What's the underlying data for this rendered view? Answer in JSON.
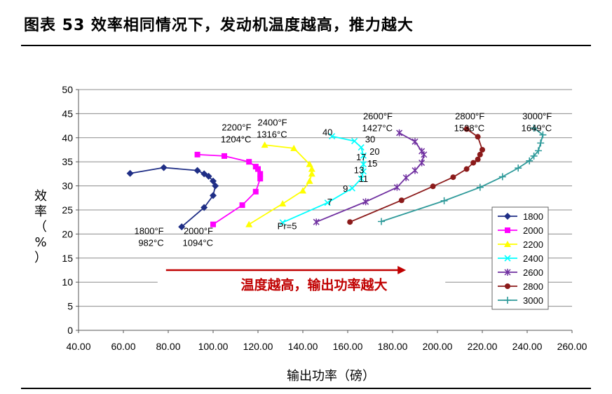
{
  "figure": {
    "title": "图表 53 效率相同情况下，发动机温度越高，推力越大"
  },
  "chart_data": {
    "type": "line",
    "xlabel": "输出功率（磅）",
    "ylabel_chars": [
      "效",
      "率",
      "（",
      "%",
      "）"
    ],
    "xlim": [
      40,
      260
    ],
    "ylim": [
      0,
      50
    ],
    "xticks": [
      "40.00",
      "60.00",
      "80.00",
      "100.00",
      "120.00",
      "140.00",
      "160.00",
      "180.00",
      "200.00",
      "220.00",
      "240.00",
      "260.00"
    ],
    "yticks": [
      "0",
      "5",
      "10",
      "15",
      "20",
      "25",
      "30",
      "35",
      "40",
      "45",
      "50"
    ],
    "grid": true,
    "legend_position": "right",
    "series": [
      {
        "name": "1800",
        "color": "#1f2e86",
        "marker": "diamond",
        "x": [
          86,
          96,
          100,
          101,
          100,
          98,
          96,
          93,
          78,
          63
        ],
        "y": [
          21.5,
          25.5,
          28,
          30,
          31,
          32,
          32.5,
          33.2,
          33.8,
          32.6
        ]
      },
      {
        "name": "2000",
        "color": "#ff00ff",
        "marker": "square",
        "x": [
          100,
          113,
          119,
          121,
          121,
          120,
          119,
          116,
          105,
          93
        ],
        "y": [
          22,
          26,
          28.8,
          31.5,
          32.5,
          33.5,
          34,
          35,
          36.2,
          36.5
        ]
      },
      {
        "name": "2200",
        "color": "#ffff00",
        "marker": "triangle",
        "x": [
          116,
          131,
          140,
          143,
          144,
          144,
          143,
          136,
          123
        ],
        "y": [
          22,
          26.3,
          29,
          31,
          32.5,
          33.5,
          34.5,
          37.8,
          38.5
        ]
      },
      {
        "name": "2400",
        "color": "#00ffff",
        "marker": "x",
        "x": [
          131,
          151,
          162,
          166,
          167,
          167,
          167,
          166,
          163,
          153
        ],
        "y": [
          22.4,
          26.5,
          29.5,
          31.5,
          33,
          34.5,
          36.3,
          38,
          39.3,
          40.3
        ]
      },
      {
        "name": "2600",
        "color": "#7030a0",
        "marker": "star",
        "x": [
          146,
          168,
          182,
          186,
          190,
          193,
          194,
          193,
          190,
          183
        ],
        "y": [
          22.5,
          26.7,
          29.7,
          31.7,
          33.2,
          34.8,
          36.5,
          37.2,
          39.2,
          41
        ]
      },
      {
        "name": "2800",
        "color": "#8b1a1a",
        "marker": "circle",
        "x": [
          161,
          184,
          198,
          207,
          213,
          216,
          218,
          219,
          220,
          218,
          213
        ],
        "y": [
          22.5,
          27,
          29.9,
          31.8,
          33.5,
          34.8,
          35.5,
          36.5,
          37.5,
          40.2,
          41.8
        ]
      },
      {
        "name": "3000",
        "color": "#2e9a9a",
        "marker": "plus",
        "x": [
          175,
          203,
          219,
          229,
          236,
          241,
          243,
          245,
          246,
          247,
          243
        ],
        "y": [
          22.6,
          26.9,
          29.7,
          31.9,
          33.7,
          35.2,
          36.2,
          37.3,
          38.9,
          40.6,
          42
        ]
      }
    ],
    "annotations": {
      "temp_1800": {
        "f": "1800°F",
        "c": "982°C",
        "x": 78,
        "y": 20
      },
      "temp_2000": {
        "f": "2000°F",
        "c": "1094°C",
        "x": 100,
        "y": 20
      },
      "temp_2200": {
        "f": "2200°F",
        "c": "1204°C",
        "x": 117,
        "y": 41.5
      },
      "temp_2400": {
        "f": "2400°F",
        "c": "1316°C",
        "x": 133,
        "y": 42.5
      },
      "temp_2600": {
        "f": "2600°F",
        "c": "1427°C",
        "x": 180,
        "y": 43.8
      },
      "temp_2800": {
        "f": "2800°F",
        "c": "1538°C",
        "x": 221,
        "y": 43.8
      },
      "temp_3000": {
        "f": "3000°F",
        "c": "1649°C",
        "x": 251,
        "y": 43.8
      },
      "pressure_ratios": [
        {
          "label": "Pr=5",
          "x": 133,
          "y": 21
        },
        {
          "label": "7",
          "x": 152,
          "y": 26
        },
        {
          "label": "9",
          "x": 159,
          "y": 28.8
        },
        {
          "label": "11",
          "x": 167,
          "y": 30.8
        },
        {
          "label": "13",
          "x": 165,
          "y": 32.6
        },
        {
          "label": "15",
          "x": 171,
          "y": 34
        },
        {
          "label": "17",
          "x": 166,
          "y": 35.3
        },
        {
          "label": "20",
          "x": 172,
          "y": 36.5
        },
        {
          "label": "30",
          "x": 170,
          "y": 39
        },
        {
          "label": "40",
          "x": 151,
          "y": 40.5
        }
      ],
      "trend": {
        "text": "温度越高，输出功率越大",
        "x_start": 79,
        "x_end": 186,
        "y_arrow": 12.5,
        "y_text": 8.5,
        "color": "#c00000"
      }
    }
  }
}
